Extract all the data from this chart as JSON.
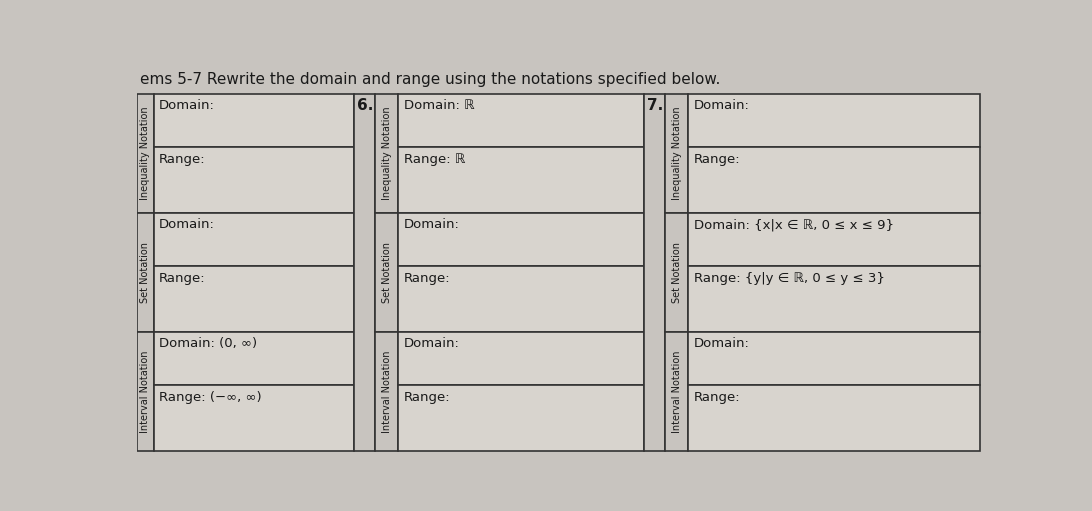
{
  "title": "ems 5-7 Rewrite the domain and range using the notations specified below.",
  "background_color": "#c8c4bf",
  "cell_bg": "#d8d4ce",
  "border_color": "#333333",
  "text_color": "#1a1a1a",
  "col5_rows": [
    [
      "Domain:",
      "Range:"
    ],
    [
      "Domain:",
      "Range:"
    ],
    [
      "Domain: (0, ∞)",
      "Range: (−∞, ∞)"
    ]
  ],
  "col5_rot_labels": [
    "Inequality Notation",
    "Set Notation",
    "Interval Notation"
  ],
  "col6_label": "6.",
  "col6_rot_labels": [
    "Inequality Notation",
    "Set Notation",
    "Interval Notation"
  ],
  "col6_rows": [
    [
      "Domain: ℝ",
      "Range: ℝ"
    ],
    [
      "Domain:",
      "Range:"
    ],
    [
      "Domain:",
      "Range:"
    ]
  ],
  "col7_label": "7.",
  "col7_rot_labels": [
    "Inequality Notation",
    "Set Notation",
    "Interval Notation"
  ],
  "col7_rows": [
    [
      "Domain:",
      "Range:"
    ],
    [
      "Domain: {x|x ∈ ℝ, 0 ≤ x ≤ 9}",
      "Range: {y|y ∈ ℝ, 0 ≤ y ≤ 3}"
    ],
    [
      "Domain:",
      "Range:"
    ]
  ]
}
